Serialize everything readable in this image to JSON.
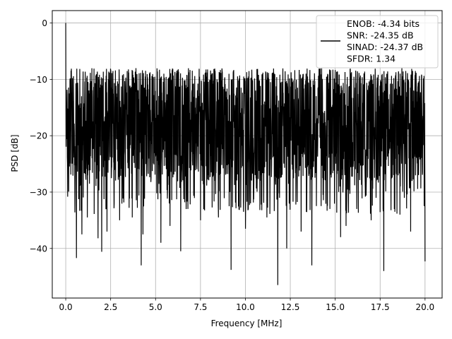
{
  "chart_data": {
    "type": "line",
    "title": "",
    "xlabel": "Frequency [MHz]",
    "ylabel": "PSD [dB]",
    "xlim": [
      -0.75,
      20.95
    ],
    "ylim": [
      -48.8,
      2.2
    ],
    "grid": true,
    "legend_placement": "top-right",
    "x_ticks": [
      0.0,
      2.5,
      5.0,
      7.5,
      10.0,
      12.5,
      15.0,
      17.5,
      20.0
    ],
    "x_tick_labels": [
      "0.0",
      "2.5",
      "5.0",
      "7.5",
      "10.0",
      "12.5",
      "15.0",
      "17.5",
      "20.0"
    ],
    "y_ticks": [
      0,
      -10,
      -20,
      -30,
      -40
    ],
    "y_tick_labels": [
      "0",
      "−10",
      "−20",
      "−30",
      "−40"
    ],
    "series": [
      {
        "color": "#000000",
        "x_start": 0.0,
        "x_end": 20.0,
        "points": 2048,
        "peak": [
          0.0,
          0.0
        ],
        "envelope_top": -8,
        "envelope_bottom": -28,
        "dips": [
          [
            0.6,
            -41.7
          ],
          [
            0.9,
            -37.5
          ],
          [
            1.2,
            -34.5
          ],
          [
            1.8,
            -38.2
          ],
          [
            2.0,
            -40.6
          ],
          [
            2.3,
            -37.0
          ],
          [
            3.0,
            -35.0
          ],
          [
            3.7,
            -34.5
          ],
          [
            4.2,
            -43.0
          ],
          [
            4.3,
            -37.5
          ],
          [
            5.3,
            -39.0
          ],
          [
            5.8,
            -36.0
          ],
          [
            6.4,
            -40.5
          ],
          [
            6.8,
            -33.0
          ],
          [
            7.5,
            -35.0
          ],
          [
            8.5,
            -34.5
          ],
          [
            9.2,
            -43.8
          ],
          [
            9.9,
            -33.5
          ],
          [
            10.0,
            -36.5
          ],
          [
            11.2,
            -34.5
          ],
          [
            11.8,
            -46.5
          ],
          [
            12.3,
            -40.0
          ],
          [
            13.1,
            -37.0
          ],
          [
            13.7,
            -43.0
          ],
          [
            14.7,
            -33.0
          ],
          [
            15.3,
            -38.0
          ],
          [
            15.6,
            -36.0
          ],
          [
            16.2,
            -33.0
          ],
          [
            17.0,
            -35.0
          ],
          [
            17.7,
            -44.0
          ],
          [
            18.6,
            -34.0
          ],
          [
            19.2,
            -37.0
          ],
          [
            20.0,
            -42.3
          ]
        ]
      }
    ],
    "legend": [
      {
        "text": "ENOB: -4.34 bits"
      },
      {
        "text": "SNR: -24.35 dB"
      },
      {
        "text": "SINAD: -24.37 dB"
      },
      {
        "text": "SFDR: 1.34"
      }
    ]
  }
}
